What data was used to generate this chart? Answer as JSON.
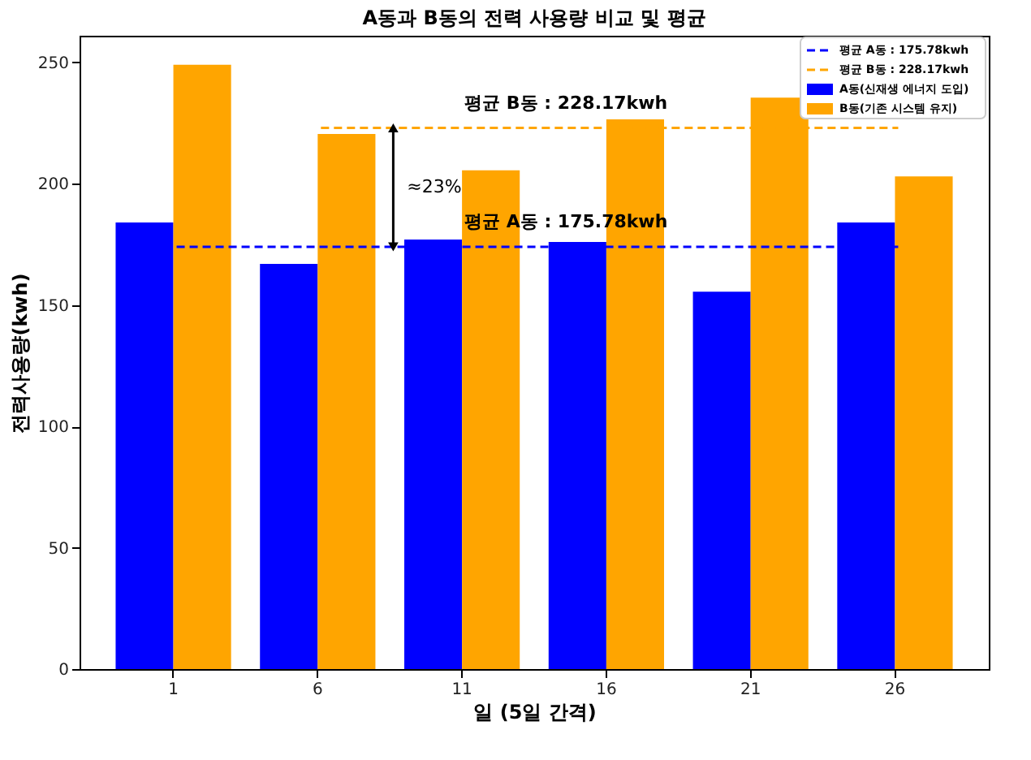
{
  "chart_data": {
    "type": "bar",
    "title": "A동과 B동의 전력 사용량 비교 및 평균",
    "xlabel": "일 (5일 간격)",
    "ylabel": "전력사용량(kwh)",
    "categories": [
      "1",
      "6",
      "11",
      "16",
      "21",
      "26"
    ],
    "series": [
      {
        "name": "A동(신재생 에너지 도입)",
        "color": "#0000ff",
        "values": [
          184,
          167,
          177,
          176,
          155.5,
          184
        ]
      },
      {
        "name": "B동(기존 시스템 유지)",
        "color": "#ffa500",
        "values": [
          249,
          220.5,
          205.5,
          226.5,
          235.5,
          203
        ]
      },
      {
        "name": "평균 A동 : 175.78kwh",
        "type": "line",
        "line_style": "dashed",
        "color": "#0000ff",
        "values": [
          174,
          174,
          174,
          174,
          174,
          174
        ]
      },
      {
        "name": "평균 B동 : 228.17kwh",
        "type": "line",
        "line_style": "dashed",
        "color": "#ffa500",
        "values": [
          null,
          223,
          223,
          223,
          223,
          223
        ]
      }
    ],
    "annotations": [
      {
        "text": "평균 B동 : 228.17kwh",
        "y": 223
      },
      {
        "text": "평균 A동 : 175.78kwh",
        "y": 174
      },
      "≈23%"
    ],
    "ylim": [
      0,
      261
    ],
    "yticks": [
      0,
      50,
      100,
      150,
      200,
      250
    ],
    "grid": false,
    "legend": "top right"
  }
}
